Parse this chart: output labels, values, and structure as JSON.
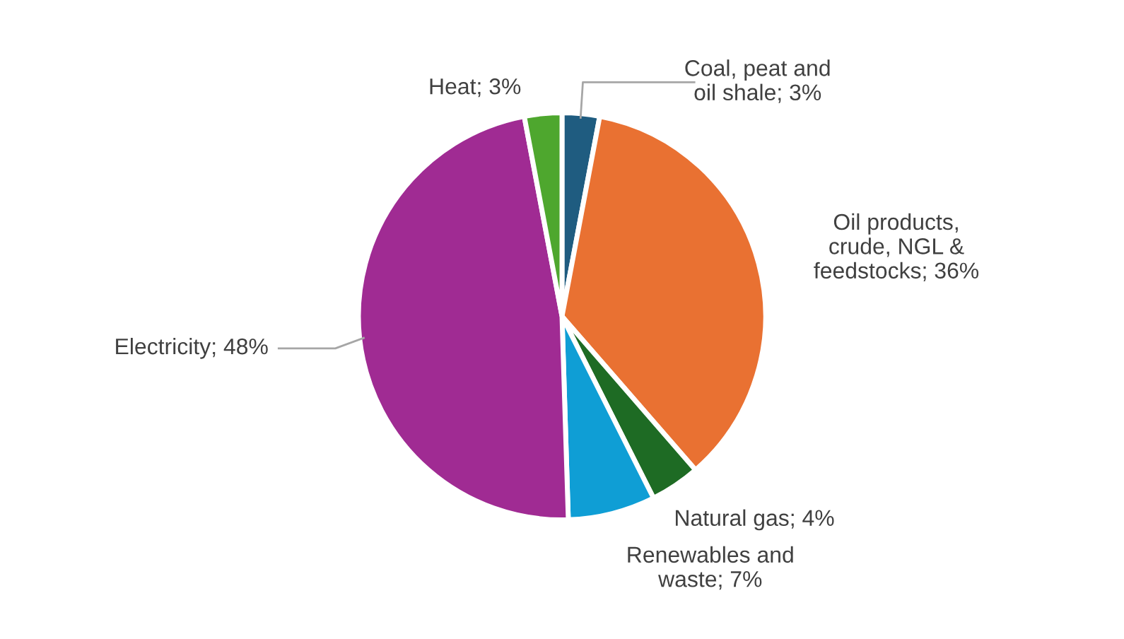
{
  "chart_data": {
    "type": "pie",
    "categories": [
      "Coal, peat and oil shale",
      "Oil products, crude, NGL & feedstocks",
      "Natural gas",
      "Renewables and waste",
      "Electricity",
      "Heat"
    ],
    "values": [
      3,
      36,
      4,
      7,
      48,
      3
    ],
    "value_labels": [
      "3%",
      "36%",
      "4%",
      "7%",
      "48%",
      "3%"
    ],
    "colors": [
      "#1f5c80",
      "#e97132",
      "#1e6b24",
      "#0f9ed5",
      "#a02b93",
      "#4ea72e"
    ],
    "legend": false
  }
}
